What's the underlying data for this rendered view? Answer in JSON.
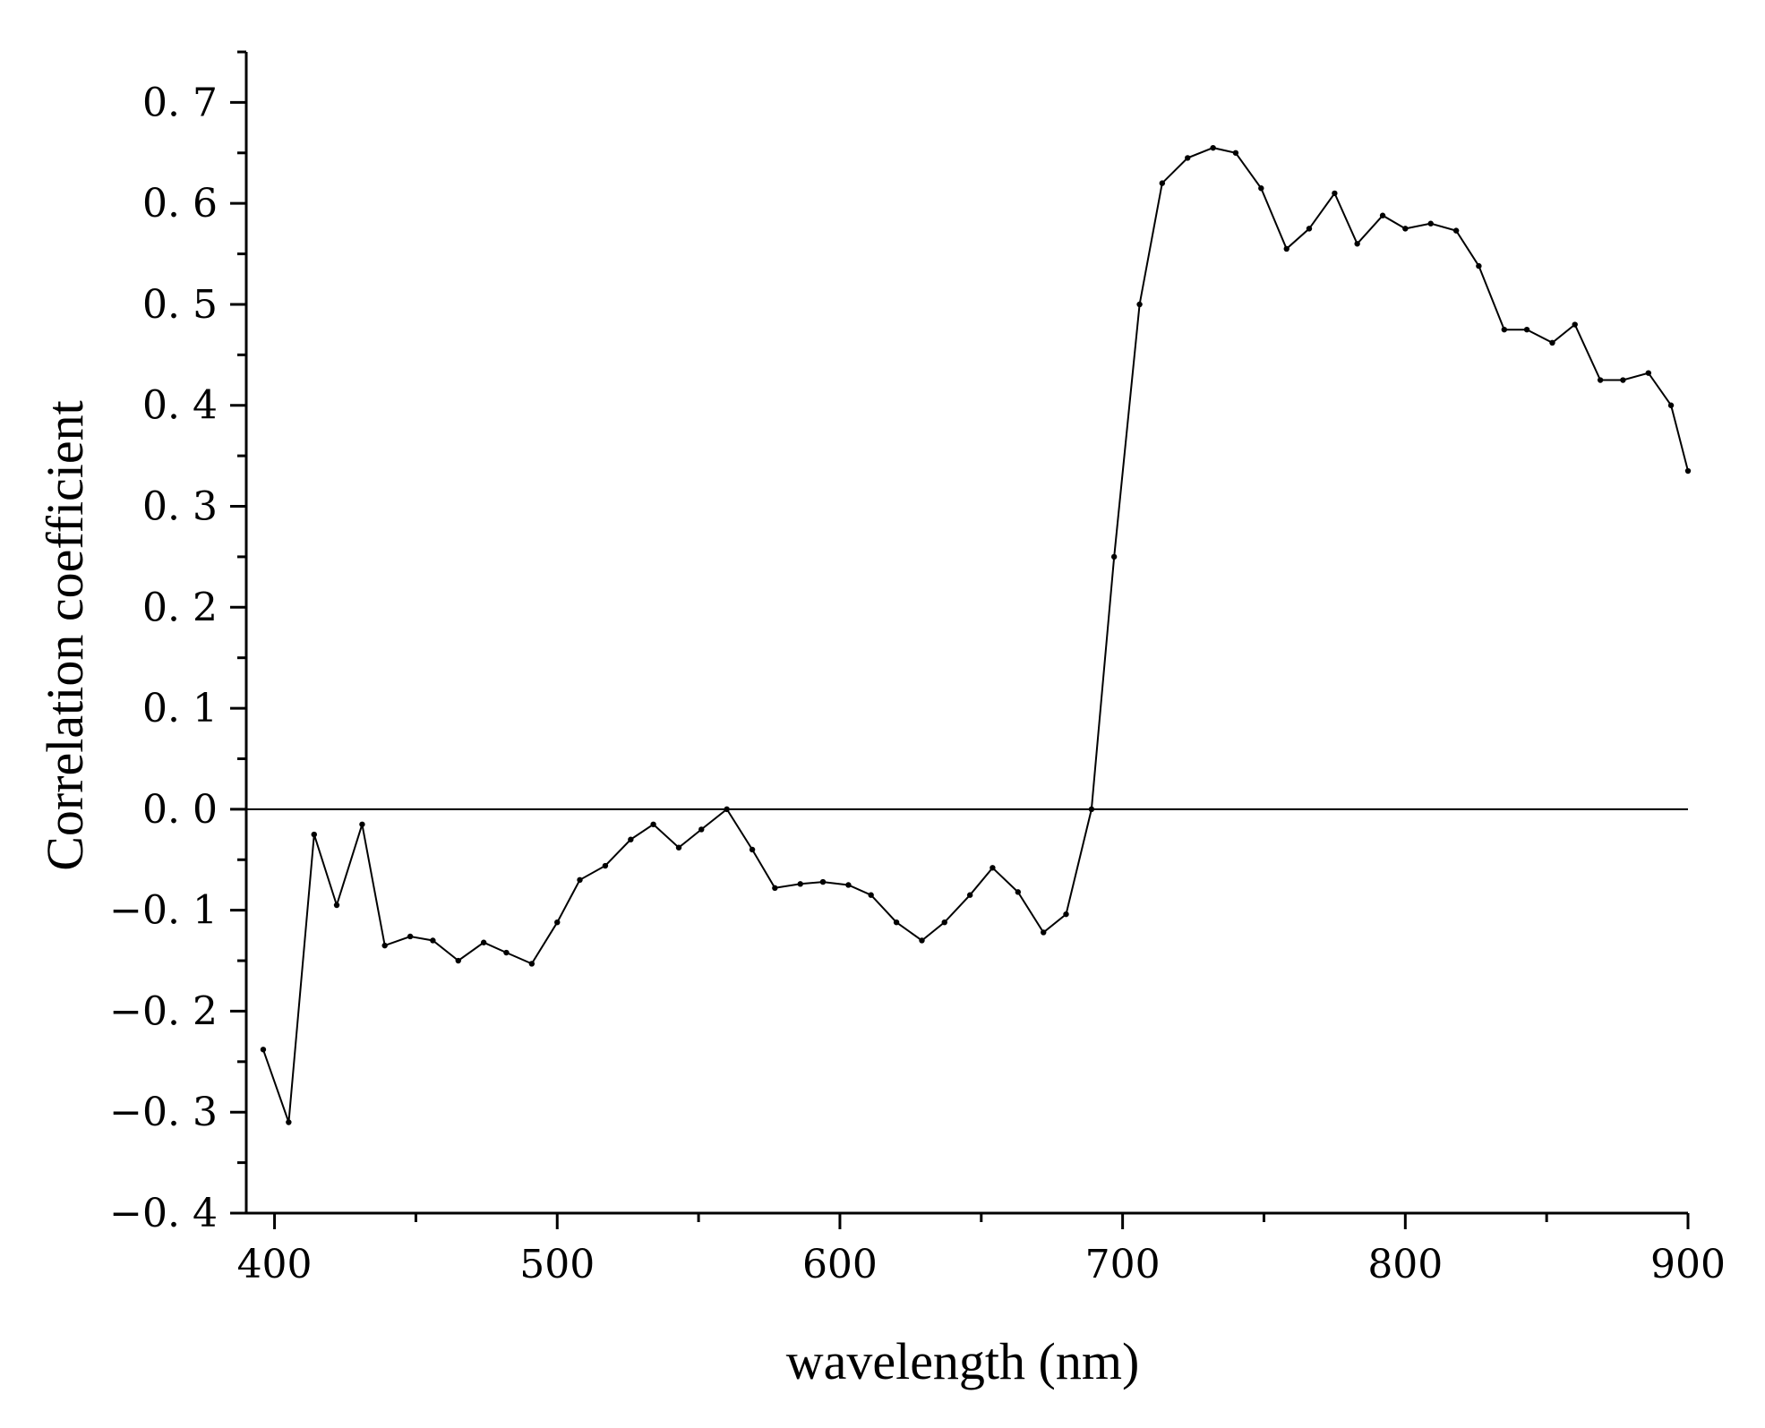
{
  "chart_data": {
    "type": "line",
    "title": "",
    "xlabel": "wavelength (nm)",
    "ylabel": "Correlation coefficient",
    "xlim": [
      390,
      900
    ],
    "ylim": [
      -0.4,
      0.75
    ],
    "x_ticks": [
      400,
      500,
      600,
      700,
      800,
      900
    ],
    "x_tick_labels": [
      "400",
      "500",
      "600",
      "700",
      "800",
      "900"
    ],
    "y_ticks": [
      -0.4,
      -0.3,
      -0.2,
      -0.1,
      0.0,
      0.1,
      0.2,
      0.3,
      0.4,
      0.5,
      0.6,
      0.7
    ],
    "y_tick_labels": [
      "−0. 4",
      "−0. 3",
      "−0. 2",
      "−0. 1",
      "0. 0",
      "0. 1",
      "0. 2",
      "0. 3",
      "0. 4",
      "0. 5",
      "0. 6",
      "0. 7"
    ],
    "zero_line": true,
    "grid": false,
    "legend": "none",
    "line_color": "#000000",
    "series": [
      {
        "name": "",
        "x": [
          396,
          405,
          414,
          422,
          431,
          439,
          448,
          456,
          465,
          474,
          482,
          491,
          500,
          508,
          517,
          526,
          534,
          543,
          551,
          560,
          569,
          577,
          586,
          594,
          603,
          611,
          620,
          629,
          637,
          646,
          654,
          663,
          672,
          680,
          689,
          697,
          706,
          714,
          723,
          732,
          740,
          749,
          758,
          766,
          775,
          783,
          792,
          800,
          809,
          818,
          826,
          835,
          843,
          852,
          860,
          869,
          877,
          886,
          894,
          900
        ],
        "y": [
          -0.238,
          -0.31,
          -0.025,
          -0.095,
          -0.015,
          -0.135,
          -0.126,
          -0.13,
          -0.15,
          -0.132,
          -0.142,
          -0.153,
          -0.112,
          -0.07,
          -0.056,
          -0.03,
          -0.015,
          -0.038,
          -0.02,
          0.0,
          -0.04,
          -0.078,
          -0.074,
          -0.072,
          -0.075,
          -0.085,
          -0.112,
          -0.13,
          -0.112,
          -0.085,
          -0.058,
          -0.082,
          -0.122,
          -0.104,
          0.0,
          0.25,
          0.5,
          0.62,
          0.645,
          0.655,
          0.65,
          0.615,
          0.555,
          0.575,
          0.61,
          0.56,
          0.588,
          0.575,
          0.58,
          0.573,
          0.538,
          0.475,
          0.475,
          0.462,
          0.48,
          0.425,
          0.425,
          0.432,
          0.4,
          0.335
        ]
      }
    ]
  }
}
